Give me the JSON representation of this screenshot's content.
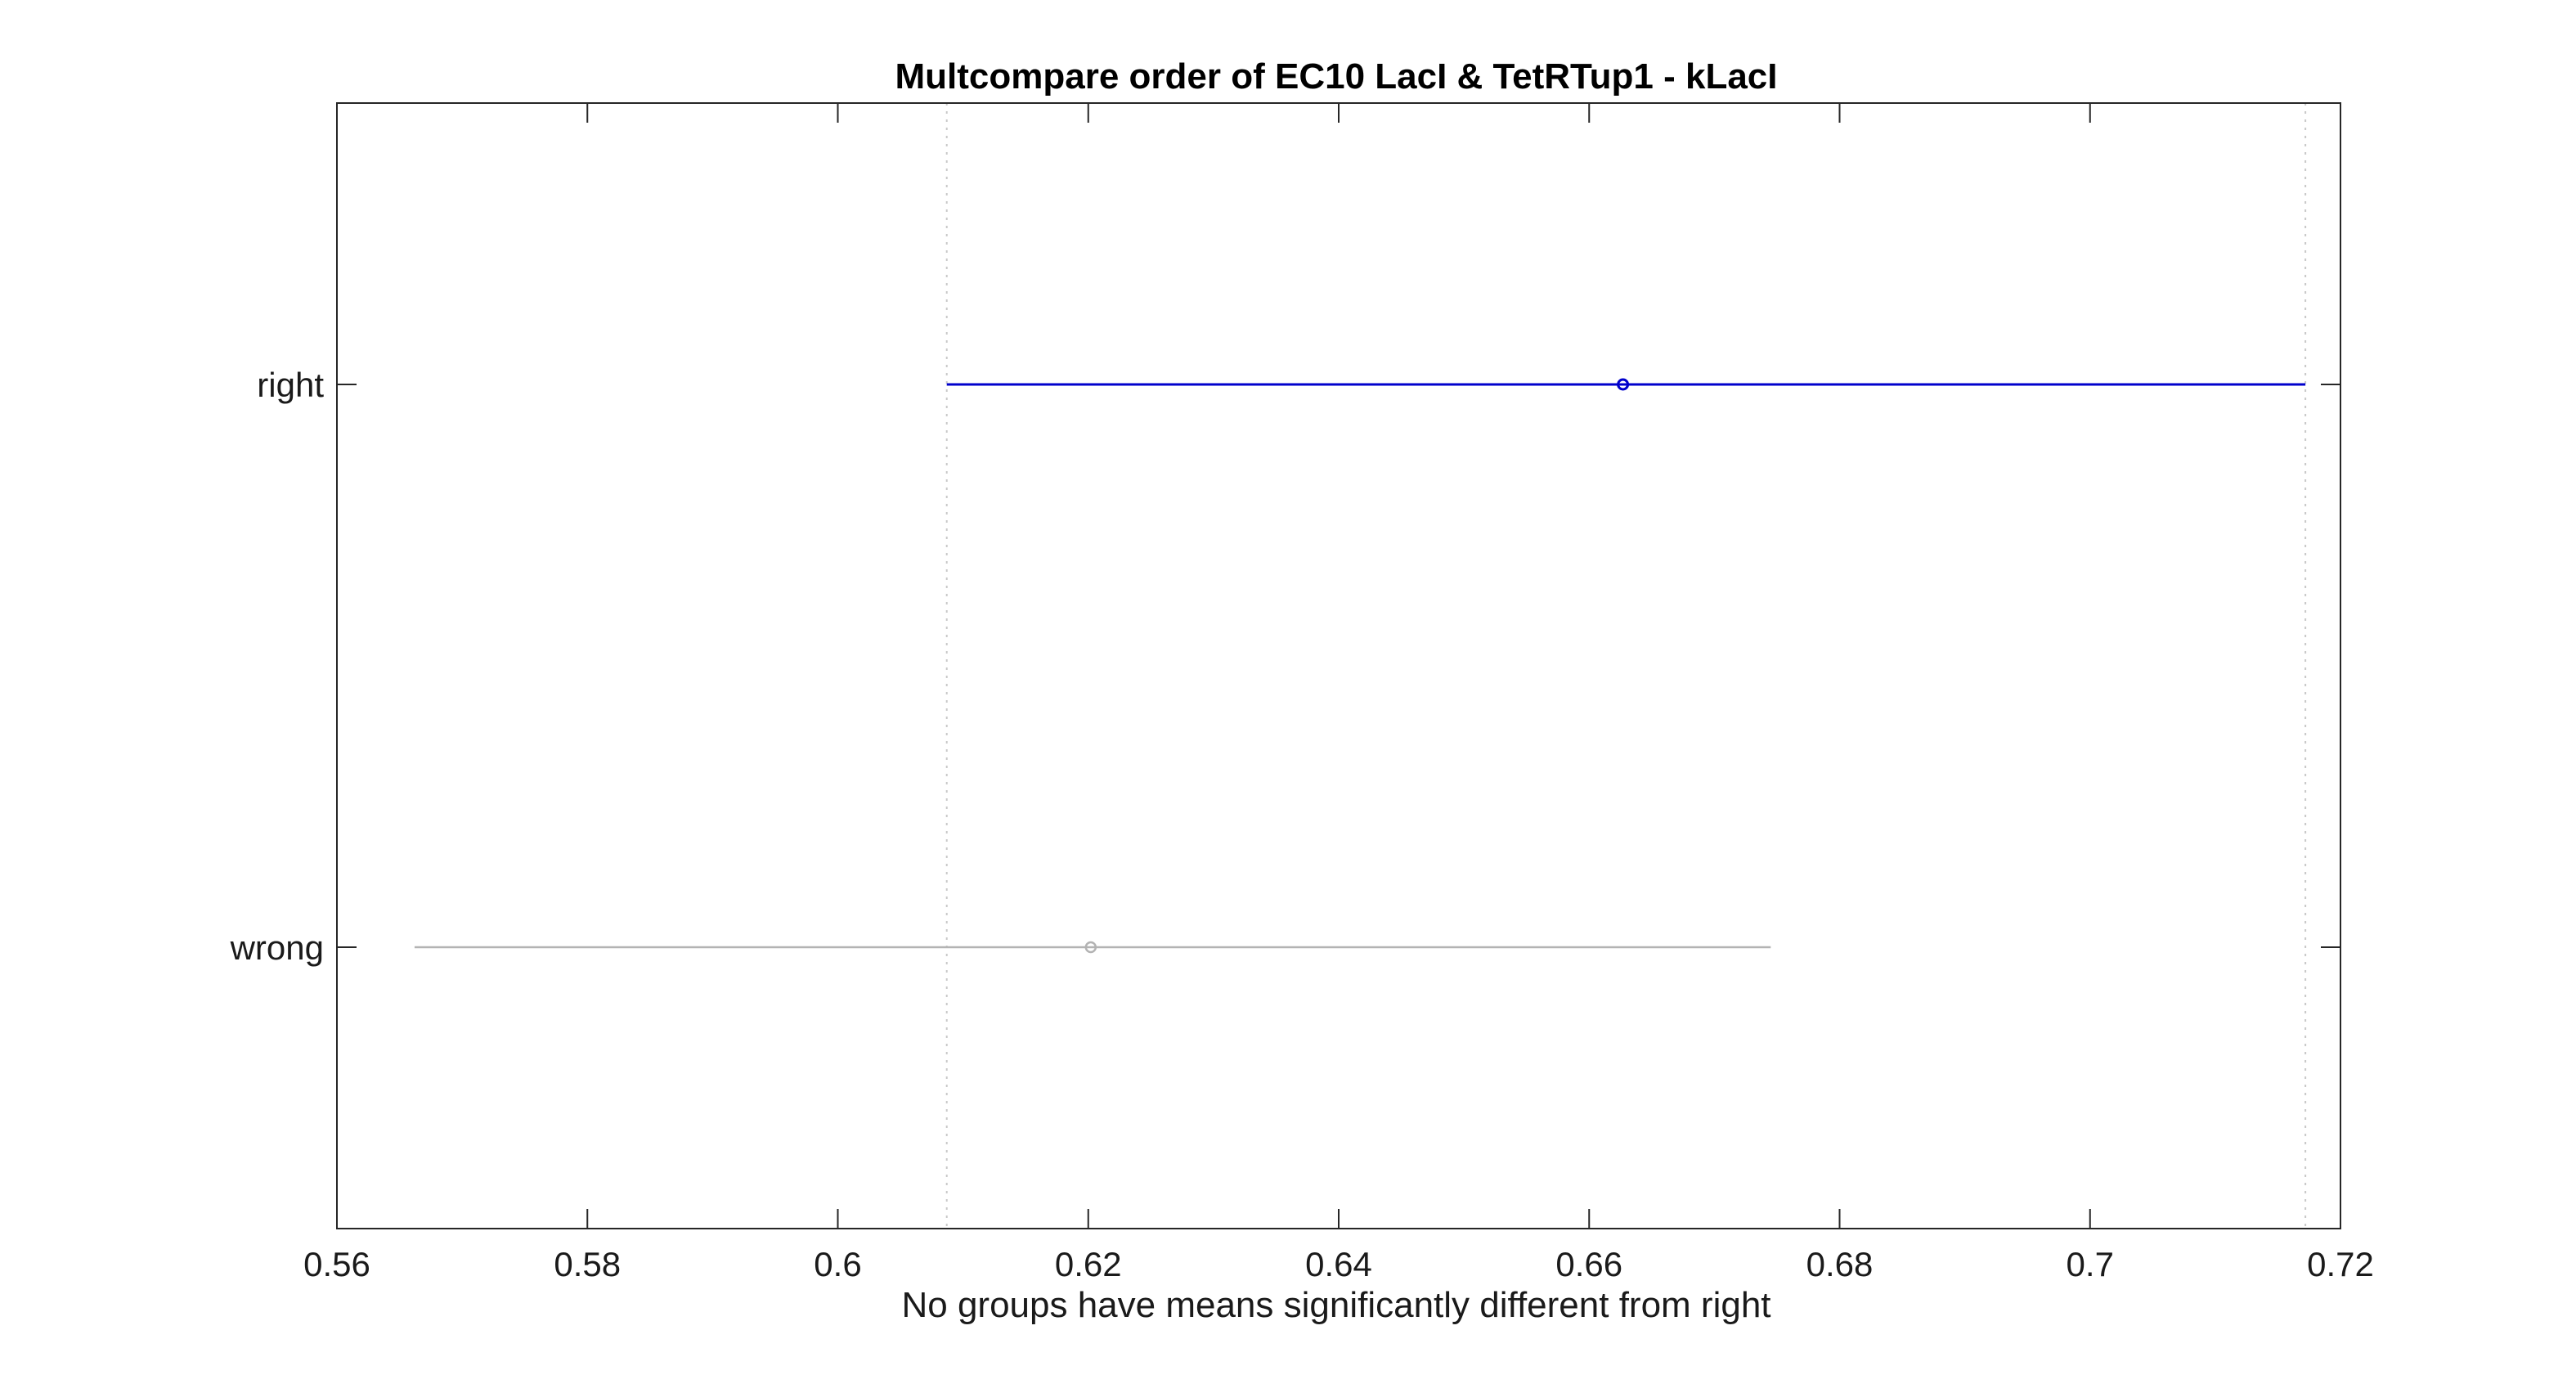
{
  "chart_data": {
    "type": "interval",
    "title": "Multcompare order of EC10 LacI & TetRTup1 - kLacI",
    "xlabel": "No groups have means significantly different from right",
    "ylabel": "",
    "xlim": [
      0.56,
      0.72
    ],
    "x_ticks": [
      0.56,
      0.58,
      0.6,
      0.62,
      0.64,
      0.66,
      0.68,
      0.7,
      0.72
    ],
    "x_tick_labels": [
      "0.56",
      "0.58",
      "0.6",
      "0.62",
      "0.64",
      "0.66",
      "0.68",
      "0.7",
      "0.72"
    ],
    "grid": false,
    "groups": [
      {
        "label": "right",
        "mean": 0.6627,
        "lower": 0.6087,
        "upper": 0.7172,
        "color": "#0000cc",
        "selected": true
      },
      {
        "label": "wrong",
        "mean": 0.6202,
        "lower": 0.5662,
        "upper": 0.6745,
        "color": "#b3b3b3",
        "selected": false
      }
    ],
    "reference_lines": [
      0.6087,
      0.7172
    ],
    "reference_line_color": "#c8c8c8"
  }
}
